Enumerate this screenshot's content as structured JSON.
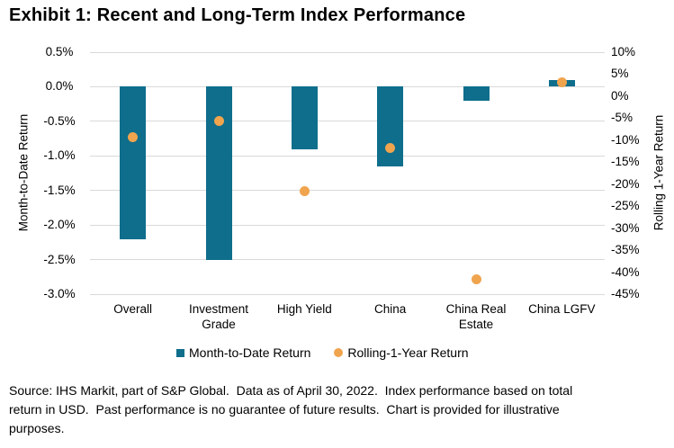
{
  "title": "Exhibit 1: Recent and Long-Term Index Performance",
  "chart_data": {
    "type": "bar",
    "subtype": "combo-bar-scatter",
    "categories": [
      "Overall",
      "Investment Grade",
      "High Yield",
      "China",
      "China Real Estate",
      "China LGFV"
    ],
    "series": [
      {
        "name": "Month-to-Date Return",
        "type": "bar",
        "axis": "left",
        "marker": "square",
        "color": "#0E6E8C",
        "values": [
          -2.2,
          -2.5,
          -0.9,
          -1.15,
          -0.2,
          0.1
        ]
      },
      {
        "name": "Rolling-1-Year Return",
        "type": "scatter",
        "axis": "right",
        "marker": "circle",
        "color": "#F0A44E",
        "values": [
          -9.4,
          -5.6,
          -21.5,
          -11.7,
          -41.7,
          3.2
        ]
      }
    ],
    "left_axis": {
      "label": "Month-to-Date Return",
      "min": -3.0,
      "max": 0.5,
      "step": 0.5,
      "tick_suffix": "%",
      "decimals": 1
    },
    "right_axis": {
      "label": "Rolling 1-Year Return",
      "min": -45,
      "max": 10,
      "step": 5,
      "tick_suffix": "%",
      "decimals": 0
    },
    "grid": true,
    "gridline_color": "#D9D9D9",
    "legend_position": "bottom"
  },
  "footer": {
    "lines": [
      "Source: IHS Markit, part of S&P Global.  Data as of April 30, 2022.  Index performance based on total",
      "return in USD.  Past performance is no guarantee of future results.  Chart is provided for illustrative",
      "purposes."
    ]
  }
}
